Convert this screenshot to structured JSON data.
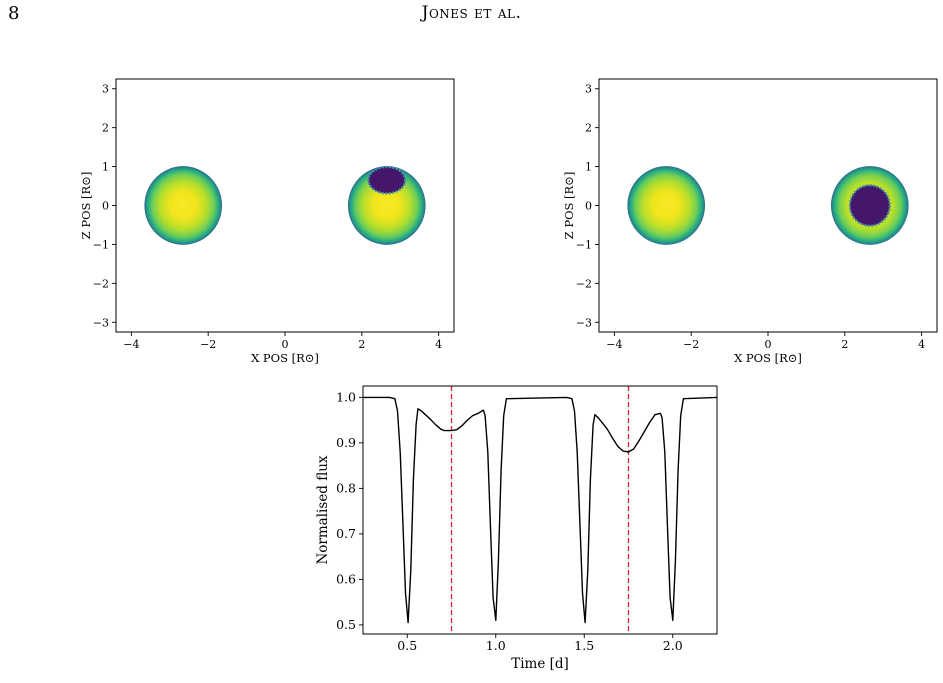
{
  "page": {
    "number": "8",
    "running_head": "Jones et al."
  },
  "chart_data": [
    {
      "type": "scatter",
      "id": "left-stellar-disk-map",
      "xlabel": "X POS [R⊙]",
      "ylabel": "Z POS [R⊙]",
      "xlim": [
        -4.4,
        4.4
      ],
      "ylim": [
        -3.25,
        3.25
      ],
      "x_ticks": [
        -4,
        -2,
        0,
        2,
        4
      ],
      "x_tick_labels": [
        "−4",
        "−2",
        "0",
        "2",
        "4"
      ],
      "y_ticks": [
        -3,
        -2,
        -1,
        0,
        1,
        2,
        3
      ],
      "y_tick_labels": [
        "−3",
        "−2",
        "−1",
        "0",
        "1",
        "2",
        "3"
      ],
      "stars": [
        {
          "x": -2.65,
          "z": 0.0,
          "radius": 1.0
        },
        {
          "x": 2.65,
          "z": 0.0,
          "radius": 1.0
        }
      ],
      "spot": {
        "x": 2.65,
        "z": 0.65,
        "rx": 0.48,
        "rz": 0.34
      },
      "colors": {
        "disk_center": "#f7e825",
        "disk_mid": "#9fd83a",
        "disk_limb": "#1f9e89",
        "disk_edge": "#2c708e",
        "spot": "#45176a",
        "spot_edge": "#3e8fb0"
      }
    },
    {
      "type": "scatter",
      "id": "right-stellar-disk-map",
      "xlabel": "X POS [R⊙]",
      "ylabel": "Z POS [R⊙]",
      "xlim": [
        -4.4,
        4.4
      ],
      "ylim": [
        -3.25,
        3.25
      ],
      "x_ticks": [
        -4,
        -2,
        0,
        2,
        4
      ],
      "x_tick_labels": [
        "−4",
        "−2",
        "0",
        "2",
        "4"
      ],
      "y_ticks": [
        -3,
        -2,
        -1,
        0,
        1,
        2,
        3
      ],
      "y_tick_labels": [
        "−3",
        "−2",
        "−1",
        "0",
        "1",
        "2",
        "3"
      ],
      "stars": [
        {
          "x": -2.65,
          "z": 0.0,
          "radius": 1.0
        },
        {
          "x": 2.65,
          "z": 0.0,
          "radius": 1.0
        }
      ],
      "spot": {
        "x": 2.65,
        "z": 0.0,
        "rx": 0.52,
        "rz": 0.52
      },
      "colors": {
        "disk_center": "#f7e825",
        "disk_mid": "#9fd83a",
        "disk_limb": "#1f9e89",
        "disk_edge": "#2c708e",
        "spot": "#45176a",
        "spot_edge": "#3e8fb0"
      }
    },
    {
      "type": "line",
      "id": "light-curve",
      "xlabel": "Time [d]",
      "ylabel": "Normalised flux",
      "xlim": [
        0.25,
        2.25
      ],
      "ylim": [
        0.48,
        1.025
      ],
      "x_ticks": [
        0.5,
        1.0,
        1.5,
        2.0
      ],
      "x_tick_labels": [
        "0.5",
        "1.0",
        "1.5",
        "2.0"
      ],
      "y_ticks": [
        0.5,
        0.6,
        0.7,
        0.8,
        0.9,
        1.0
      ],
      "y_tick_labels": [
        "0.5",
        "0.6",
        "0.7",
        "0.8",
        "0.9",
        "1.0"
      ],
      "vlines": [
        0.75,
        1.75
      ],
      "colors": {
        "line": "#000000",
        "vline": "#d62728"
      },
      "series": [
        {
          "x": [
            0.25,
            0.4,
            0.43,
            0.445,
            0.46,
            0.475,
            0.49,
            0.505,
            0.52,
            0.535,
            0.55,
            0.56,
            0.58,
            0.6,
            0.63,
            0.66,
            0.69,
            0.71,
            0.75,
            0.78,
            0.81,
            0.84,
            0.87,
            0.9,
            0.93,
            0.94,
            0.955,
            0.97,
            0.985,
            1.0,
            1.015,
            1.03,
            1.045,
            1.06,
            1.4,
            1.43,
            1.445,
            1.46,
            1.475,
            1.49,
            1.505,
            1.52,
            1.535,
            1.55,
            1.56,
            1.58,
            1.6,
            1.63,
            1.66,
            1.69,
            1.72,
            1.75,
            1.78,
            1.81,
            1.84,
            1.87,
            1.9,
            1.93,
            1.94,
            1.955,
            1.97,
            1.985,
            2.0,
            2.015,
            2.03,
            2.045,
            2.06,
            2.25
          ],
          "y": [
            1.0,
            1.0,
            0.997,
            0.97,
            0.88,
            0.73,
            0.57,
            0.505,
            0.62,
            0.82,
            0.94,
            0.975,
            0.97,
            0.963,
            0.952,
            0.94,
            0.93,
            0.927,
            0.927,
            0.929,
            0.938,
            0.95,
            0.96,
            0.965,
            0.972,
            0.96,
            0.88,
            0.72,
            0.56,
            0.51,
            0.64,
            0.84,
            0.96,
            0.997,
            1.0,
            0.997,
            0.97,
            0.88,
            0.73,
            0.57,
            0.505,
            0.62,
            0.82,
            0.94,
            0.962,
            0.955,
            0.945,
            0.93,
            0.91,
            0.892,
            0.882,
            0.88,
            0.887,
            0.905,
            0.925,
            0.945,
            0.962,
            0.965,
            0.955,
            0.88,
            0.72,
            0.56,
            0.51,
            0.64,
            0.84,
            0.96,
            0.997,
            1.0
          ]
        }
      ]
    }
  ]
}
